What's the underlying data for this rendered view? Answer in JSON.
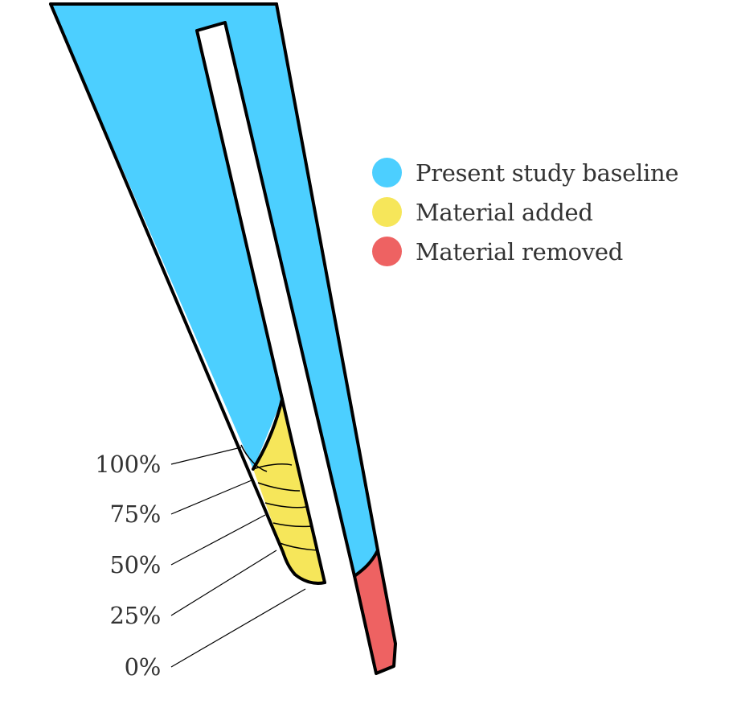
{
  "colors": {
    "baseline": "#4ccfff",
    "added": "#f6e65a",
    "removed": "#ee6262",
    "outline": "#000000",
    "text": "#333333"
  },
  "legend": {
    "items": [
      {
        "label": "Present study baseline",
        "color": "#4ccfff"
      },
      {
        "label": "Material added",
        "color": "#f6e65a"
      },
      {
        "label": "Material removed",
        "color": "#ee6262"
      }
    ]
  },
  "scale": {
    "labels": [
      "100%",
      "75%",
      "50%",
      "25%",
      "0%"
    ]
  }
}
